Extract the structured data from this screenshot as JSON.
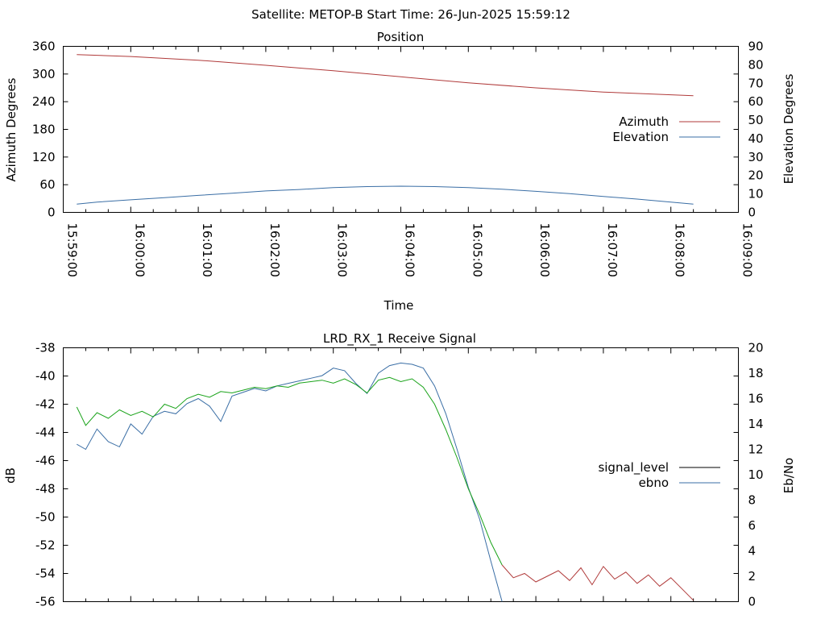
{
  "suptitle": "Satellite: METOP-B    Start Time: 26-Jun-2025 15:59:12",
  "colors": {
    "azimuth": "#b03a3a",
    "elevation": "#3a6ea5",
    "signal_level_raw": "#b03a3a",
    "signal_level_lock": "#1aa31a",
    "signal_level_legend": "#000000",
    "ebno": "#3a6ea5"
  },
  "chart_data": [
    {
      "type": "line",
      "title": "Position",
      "xlabel": "Time",
      "ylabel": "Azimuth Degrees",
      "y2label": "Elevation Degrees",
      "xlim": [
        "15:59:00",
        "16:09:00"
      ],
      "ylim": [
        0,
        360
      ],
      "y2lim": [
        0,
        90
      ],
      "y_ticks": [
        0,
        60,
        120,
        180,
        240,
        300,
        360
      ],
      "y2_ticks": [
        0,
        10,
        20,
        30,
        40,
        50,
        60,
        70,
        80,
        90
      ],
      "x_ticks": [
        "15:59:00",
        "16:00:00",
        "16:01:00",
        "16:02:00",
        "16:03:00",
        "16:04:00",
        "16:05:00",
        "16:06:00",
        "16:07:00",
        "16:08:00",
        "16:09:00"
      ],
      "legend_placement": "right",
      "grid": false,
      "series": [
        {
          "name": "Azimuth",
          "axis": "left",
          "x": [
            "15:59:12",
            "16:00:00",
            "16:01:00",
            "16:02:00",
            "16:03:00",
            "16:04:00",
            "16:05:00",
            "16:06:00",
            "16:07:00",
            "16:08:00",
            "16:08:20"
          ],
          "y": [
            342,
            338,
            330,
            319,
            307,
            294,
            281,
            270,
            261,
            255,
            253
          ]
        },
        {
          "name": "Elevation",
          "axis": "right",
          "x": [
            "15:59:12",
            "15:59:30",
            "16:00:00",
            "16:00:30",
            "16:01:00",
            "16:01:30",
            "16:02:00",
            "16:02:30",
            "16:03:00",
            "16:03:30",
            "16:04:00",
            "16:04:30",
            "16:05:00",
            "16:05:30",
            "16:06:00",
            "16:06:30",
            "16:07:00",
            "16:07:30",
            "16:08:00",
            "16:08:20"
          ],
          "y": [
            4.5,
            5.6,
            6.8,
            8.0,
            9.2,
            10.4,
            11.6,
            12.4,
            13.4,
            14.0,
            14.2,
            14.0,
            13.4,
            12.6,
            11.4,
            10.2,
            8.6,
            7.2,
            5.6,
            4.5
          ]
        }
      ]
    },
    {
      "type": "line",
      "title": "LRD_RX_1 Receive Signal",
      "xlabel": "",
      "ylabel": "dB",
      "y2label": "Eb/No",
      "xlim": [
        "15:59:00",
        "16:09:00"
      ],
      "ylim": [
        -56,
        -38
      ],
      "y2lim": [
        0,
        20
      ],
      "y_ticks": [
        -56,
        -54,
        -52,
        -50,
        -48,
        -46,
        -44,
        -42,
        -40,
        -38
      ],
      "y2_ticks": [
        0,
        2,
        4,
        6,
        8,
        10,
        12,
        14,
        16,
        18,
        20
      ],
      "legend_placement": "right",
      "grid": false,
      "series": [
        {
          "name": "signal_level",
          "axis": "left",
          "x": [
            "15:59:12",
            "15:59:20",
            "15:59:30",
            "15:59:40",
            "15:59:50",
            "16:00:00",
            "16:00:10",
            "16:00:20",
            "16:00:30",
            "16:00:40",
            "16:00:50",
            "16:01:00",
            "16:01:10",
            "16:01:20",
            "16:01:30",
            "16:01:40",
            "16:01:50",
            "16:02:00",
            "16:02:10",
            "16:02:20",
            "16:02:30",
            "16:02:40",
            "16:02:50",
            "16:03:00",
            "16:03:10",
            "16:03:20",
            "16:03:30",
            "16:03:40",
            "16:03:50",
            "16:04:00",
            "16:04:10",
            "16:04:20",
            "16:04:30",
            "16:04:40",
            "16:04:50",
            "16:05:00",
            "16:05:10",
            "16:05:20",
            "16:05:30",
            "16:05:40",
            "16:05:50",
            "16:06:00",
            "16:06:10",
            "16:06:20",
            "16:06:30",
            "16:06:40",
            "16:06:50",
            "16:07:00",
            "16:07:10",
            "16:07:20",
            "16:07:30",
            "16:07:40",
            "16:07:50",
            "16:08:00",
            "16:08:10",
            "16:08:20"
          ],
          "y": [
            -42.2,
            -43.5,
            -42.6,
            -43.0,
            -42.4,
            -42.8,
            -42.5,
            -42.9,
            -42.0,
            -42.3,
            -41.6,
            -41.3,
            -41.5,
            -41.1,
            -41.2,
            -41.0,
            -40.8,
            -40.9,
            -40.7,
            -40.8,
            -40.5,
            -40.4,
            -40.3,
            -40.5,
            -40.2,
            -40.6,
            -41.2,
            -40.3,
            -40.1,
            -40.4,
            -40.2,
            -40.8,
            -42.0,
            -43.8,
            -45.8,
            -48.0,
            -49.8,
            -51.8,
            -53.4,
            -54.3,
            -54.0,
            -54.6,
            -54.2,
            -53.8,
            -54.5,
            -53.6,
            -54.8,
            -53.5,
            -54.4,
            -53.9,
            -54.7,
            -54.1,
            -54.9,
            -54.3,
            -55.1,
            -55.9
          ],
          "lock_end": "16:05:30"
        },
        {
          "name": "ebno",
          "axis": "right",
          "x": [
            "15:59:12",
            "15:59:20",
            "15:59:30",
            "15:59:40",
            "15:59:50",
            "16:00:00",
            "16:00:10",
            "16:00:20",
            "16:00:30",
            "16:00:40",
            "16:00:50",
            "16:01:00",
            "16:01:10",
            "16:01:20",
            "16:01:30",
            "16:01:40",
            "16:01:50",
            "16:02:00",
            "16:02:10",
            "16:02:20",
            "16:02:30",
            "16:02:40",
            "16:02:50",
            "16:03:00",
            "16:03:10",
            "16:03:20",
            "16:03:30",
            "16:03:40",
            "16:03:50",
            "16:04:00",
            "16:04:10",
            "16:04:20",
            "16:04:30",
            "16:04:40",
            "16:04:50",
            "16:05:00",
            "16:05:10",
            "16:05:20",
            "16:05:30"
          ],
          "y": [
            12.4,
            12.0,
            13.6,
            12.6,
            12.2,
            14.0,
            13.2,
            14.6,
            15.0,
            14.8,
            15.6,
            16.0,
            15.4,
            14.2,
            16.2,
            16.5,
            16.8,
            16.6,
            17.0,
            17.2,
            17.4,
            17.6,
            17.8,
            18.4,
            18.2,
            17.2,
            16.4,
            18.0,
            18.6,
            18.8,
            18.7,
            18.4,
            17.0,
            14.8,
            12.0,
            9.0,
            6.5,
            3.2,
            0.0
          ]
        }
      ]
    }
  ]
}
